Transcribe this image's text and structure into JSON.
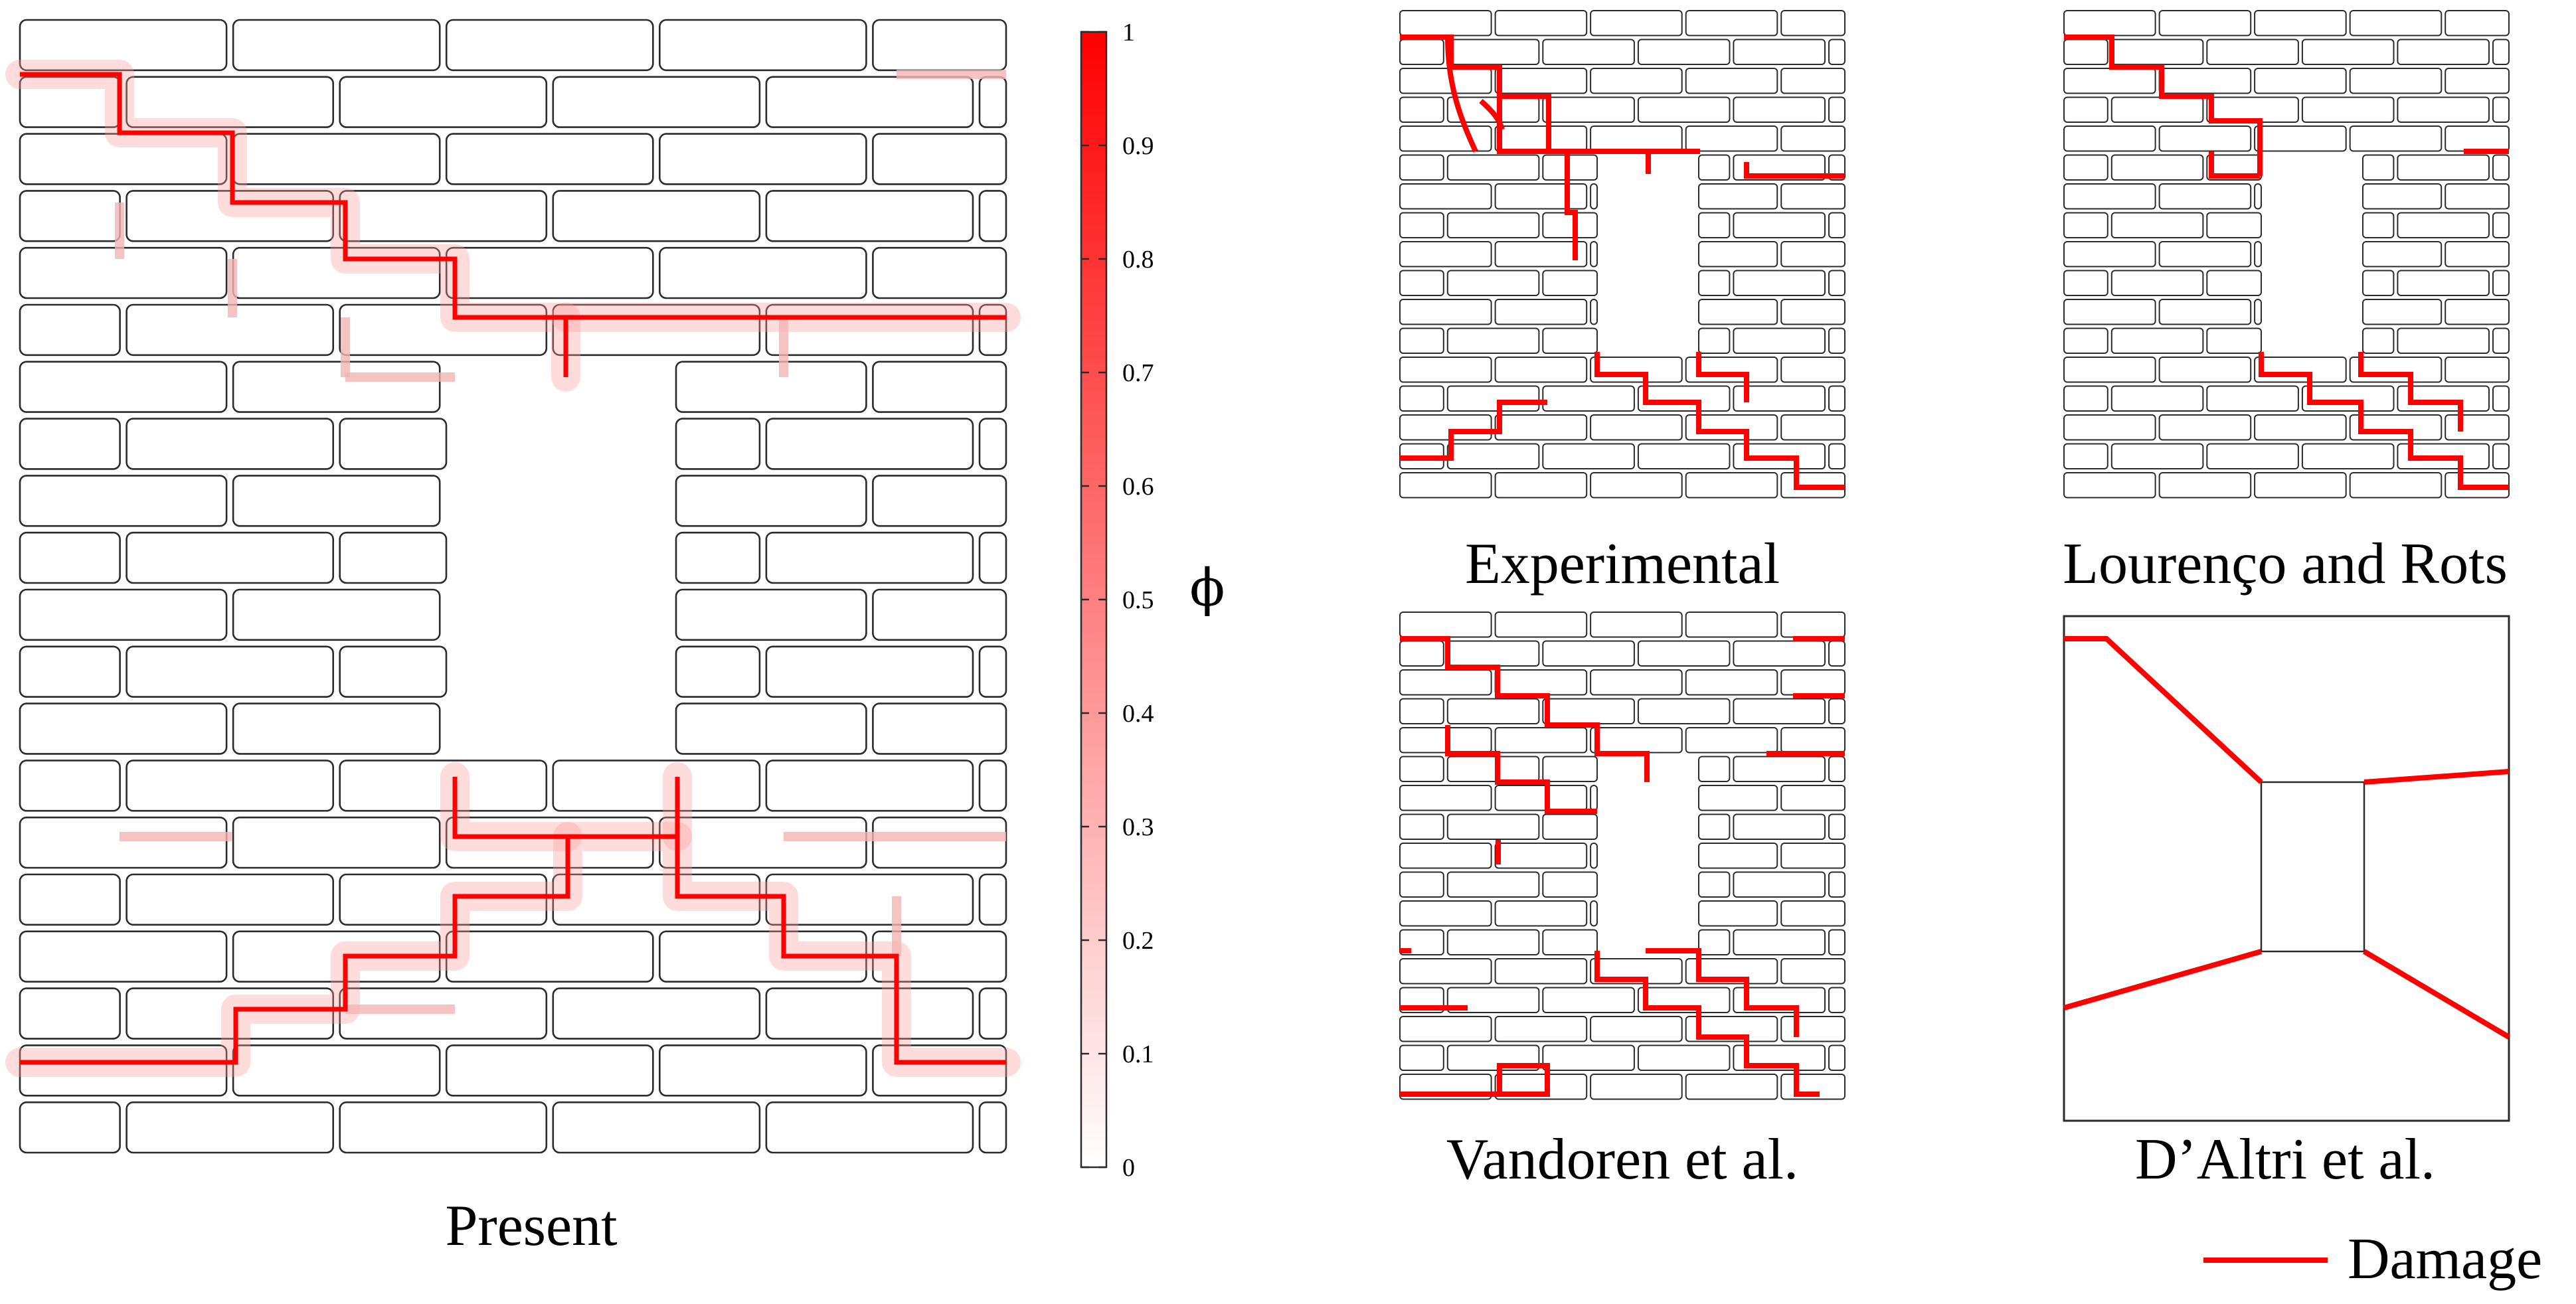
{
  "colors": {
    "damage": "#ff0000",
    "brick_stroke": "#2b2b2b",
    "background": "#ffffff"
  },
  "panels": {
    "present": {
      "label": "Present"
    },
    "experimental": {
      "label": "Experimental"
    },
    "lourenco_rots": {
      "label": "Lourenço and Rots"
    },
    "vandoren": {
      "label": "Vandoren et al."
    },
    "daltri": {
      "label": "D’Altri et al."
    }
  },
  "colorbar": {
    "symbol": "ϕ",
    "ticks": [
      "0",
      "0.1",
      "0.2",
      "0.3",
      "0.4",
      "0.5",
      "0.6",
      "0.7",
      "0.8",
      "0.9",
      "1"
    ],
    "range": [
      0,
      1
    ],
    "colors": [
      "#ffffff",
      "#ff0000"
    ]
  },
  "legend": {
    "label": "Damage",
    "color": "#ff0000"
  }
}
